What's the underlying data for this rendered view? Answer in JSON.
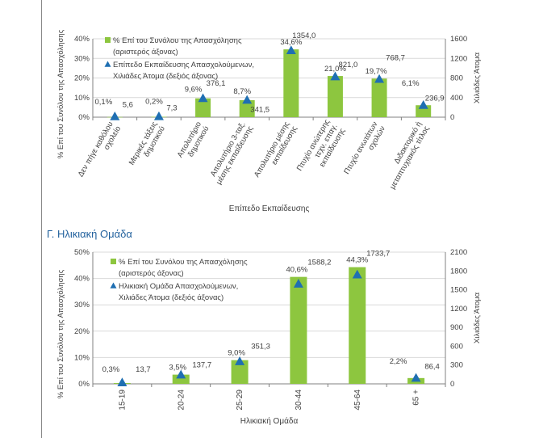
{
  "section_title": "Γ. Ηλικιακή Ομάδα",
  "colors": {
    "bar": "#8dc63f",
    "marker": "#1f6fb2",
    "grid": "#d9d9d9",
    "axis": "#808080",
    "text": "#404040",
    "title": "#1f5f9c"
  },
  "chart_data": [
    {
      "type": "bar",
      "title": "",
      "xlabel": "Επίπεδο Εκπαίδευσης",
      "ylabel": "% Επί του Συνόλου της Απασχόλησης",
      "y2label": "Χιλιάδες Άτομα",
      "ylim": [
        0,
        40
      ],
      "y2lim": [
        0,
        1600
      ],
      "yticks": [
        "0%",
        "10%",
        "20%",
        "30%",
        "40%"
      ],
      "y2ticks": [
        "0",
        "400",
        "800",
        "1200",
        "1600"
      ],
      "categories": [
        [
          "Δεν πήγε καθόλου",
          "σχολείο"
        ],
        [
          "Μερικές τάξεις",
          "δημοτικού"
        ],
        [
          "Απολυτήριο",
          "δημοτικού"
        ],
        [
          "Απολυτήριο 3-ταξ.",
          "μέσης εκπαίδευσης"
        ],
        [
          "Απολυτήριο μέσης",
          "εκπαίδευσης"
        ],
        [
          "Πτυχίο ανώτερης",
          "τεχν. επαγ.",
          "εκπαίδευσης"
        ],
        [
          "Πτυχίο ανωτάτων",
          "σχολών"
        ],
        [
          "Διδακτορικό ή",
          "μεταπτυχιακός τίτλος"
        ]
      ],
      "series": [
        {
          "name": "% Επί του Συνόλου της Απασχόλησης (αριστερός άξονας)",
          "kind": "bar",
          "axis": "left",
          "values": [
            0.1,
            0.2,
            9.6,
            8.7,
            34.6,
            21.0,
            19.7,
            6.1
          ],
          "labels": [
            "0,1%",
            "0,2%",
            "9,6%",
            "8,7%",
            "34,6%",
            "21,0%",
            "19,7%",
            "6,1%"
          ]
        },
        {
          "name": "Επίπεδο Εκπαίδευσης Απασχολούμενων, Χιλιάδες Άτομα (δεξιός άξονας)",
          "kind": "marker",
          "axis": "right",
          "values": [
            5.6,
            7.3,
            376.1,
            341.5,
            1354.0,
            821.0,
            768.7,
            236.9
          ],
          "labels": [
            "5,6",
            "7,3",
            "376,1",
            "341,5",
            "1354,0",
            "821,0",
            "768,7",
            "236,9"
          ]
        }
      ],
      "legend": [
        {
          "kind": "bar",
          "lines": [
            "% Επί του Συνόλου της Απασχόλησης",
            "(αριστερός άξονας)"
          ]
        },
        {
          "kind": "marker",
          "lines": [
            "Επίπεδο Εκπαίδευσης Απασχολούμενων,",
            "Χιλιάδες Άτομα (δεξιός άξονας)"
          ]
        }
      ],
      "legend_position": "top-left"
    },
    {
      "type": "bar",
      "title": "",
      "xlabel": "Ηλικιακή Ομάδα",
      "ylabel": "% Επί του Συνόλου της Απασχόλησης",
      "y2label": "Χιλιάδες Άτομα",
      "ylim": [
        0,
        50
      ],
      "y2lim": [
        0,
        2100
      ],
      "yticks": [
        "0%",
        "10%",
        "20%",
        "30%",
        "40%",
        "50%"
      ],
      "y2ticks": [
        "0",
        "300",
        "600",
        "900",
        "1200",
        "1500",
        "1800",
        "2100"
      ],
      "categories": [
        [
          "15-19"
        ],
        [
          "20-24"
        ],
        [
          "25-29"
        ],
        [
          "30-44"
        ],
        [
          "45-64"
        ],
        [
          "65 +"
        ]
      ],
      "series": [
        {
          "name": "% Επί του Συνόλου της Απασχόλησης (αριστερός άξονας)",
          "kind": "bar",
          "axis": "left",
          "values": [
            0.3,
            3.5,
            9.0,
            40.6,
            44.3,
            2.2
          ],
          "labels": [
            "0,3%",
            "3,5%",
            "9,0%",
            "40,6%",
            "44,3%",
            "2,2%"
          ]
        },
        {
          "name": "Ηλικιακή Ομάδα Απασχολούμενων, Χιλιάδες Άτομα (δεξιός άξονας)",
          "kind": "marker",
          "axis": "right",
          "values": [
            13.7,
            137.7,
            351.3,
            1588.2,
            1733.7,
            86.4
          ],
          "labels": [
            "13,7",
            "137,7",
            "351,3",
            "1588,2",
            "1733,7",
            "86,4"
          ]
        }
      ],
      "legend": [
        {
          "kind": "bar",
          "lines": [
            "% Επί του Συνόλου της Απασχόλησης",
            "(αριστερός άξονας)"
          ]
        },
        {
          "kind": "marker",
          "lines": [
            "Ηλικιακή Ομάδα Απασχολούμενων,",
            "Χιλιάδες Άτομα (δεξιός άξονας)"
          ]
        }
      ],
      "legend_position": "top-left"
    }
  ]
}
